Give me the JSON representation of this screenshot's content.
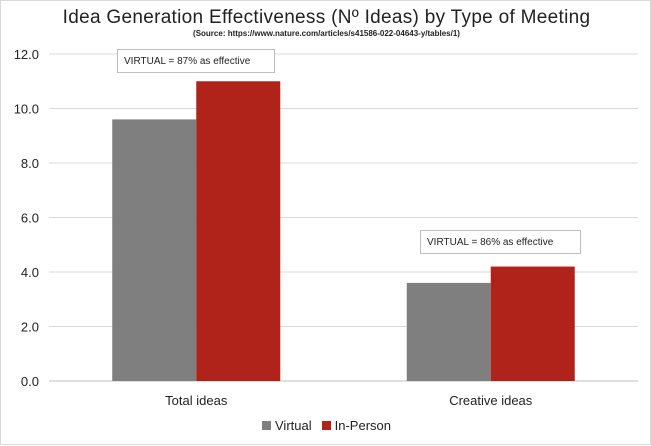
{
  "chart_data": {
    "type": "bar",
    "title": "Idea Generation Effectiveness (Nº Ideas) by Type of Meeting",
    "subtitle": "(Source: https://www.nature.com/articles/s41586-022-04643-y/tables/1)",
    "categories": [
      "Total ideas",
      "Creative ideas"
    ],
    "series": [
      {
        "name": "Virtual",
        "color": "#7f7f7f",
        "values": [
          9.6,
          3.6
        ]
      },
      {
        "name": "In-Person",
        "color": "#b0231b",
        "values": [
          11.0,
          4.2
        ]
      }
    ],
    "ylim": [
      0,
      12
    ],
    "yticks": [
      "0.0",
      "2.0",
      "4.0",
      "6.0",
      "8.0",
      "10.0",
      "12.0"
    ],
    "grid": true,
    "legend_position": "bottom",
    "annotations": [
      {
        "category": "Total ideas",
        "text": "VIRTUAL = 87% as effective"
      },
      {
        "category": "Creative ideas",
        "text": "VIRTUAL = 86% as effective"
      }
    ]
  }
}
